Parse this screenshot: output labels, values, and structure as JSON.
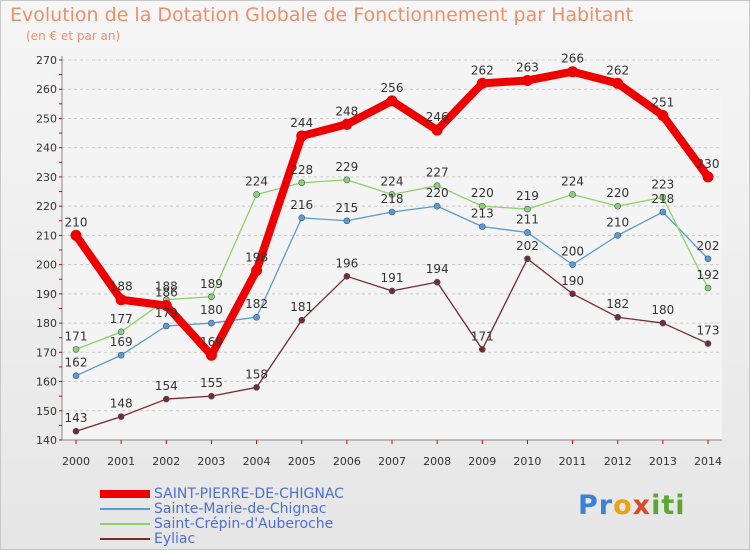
{
  "title": "Evolution de la Dotation Globale de Fonctionnement par Habitant",
  "subtitle": "(en € et par an)",
  "logo": {
    "part1": "Pr",
    "part2": "o",
    "part3": "x",
    "part4": "iti"
  },
  "chart_data": {
    "type": "line",
    "title": "Evolution de la Dotation Globale de Fonctionnement par Habitant",
    "subtitle": "(en € et par an)",
    "xlabel": "",
    "ylabel": "",
    "x": [
      "2000",
      "2001",
      "2002",
      "2003",
      "2004",
      "2005",
      "2006",
      "2007",
      "2008",
      "2009",
      "2010",
      "2011",
      "2012",
      "2013",
      "2014"
    ],
    "ylim": [
      140,
      270
    ],
    "yticks": [
      140,
      150,
      160,
      170,
      180,
      190,
      200,
      210,
      220,
      230,
      240,
      250,
      260,
      270
    ],
    "grid": "horizontal dashed",
    "legend_position": "bottom-left",
    "series": [
      {
        "name": "SAINT-PIERRE-DE-CHIGNAC",
        "color": "#ee0000",
        "values": [
          210,
          188,
          186,
          169,
          198,
          244,
          248,
          256,
          246,
          262,
          263,
          266,
          262,
          251,
          230
        ]
      },
      {
        "name": "Sainte-Marie-de-Chignac",
        "color": "#5b9bd5",
        "values": [
          162,
          169,
          179,
          180,
          182,
          216,
          215,
          218,
          220,
          213,
          211,
          200,
          210,
          218,
          202
        ]
      },
      {
        "name": "Saint-Crépin-d'Auberoche",
        "color": "#8fd16a",
        "values": [
          171,
          177,
          188,
          189,
          224,
          228,
          229,
          224,
          227,
          220,
          219,
          224,
          220,
          223,
          192
        ]
      },
      {
        "name": "Eyliac",
        "color": "#7a2a2a",
        "values": [
          143,
          148,
          154,
          155,
          158,
          181,
          196,
          191,
          194,
          171,
          202,
          190,
          182,
          180,
          173
        ]
      }
    ]
  }
}
